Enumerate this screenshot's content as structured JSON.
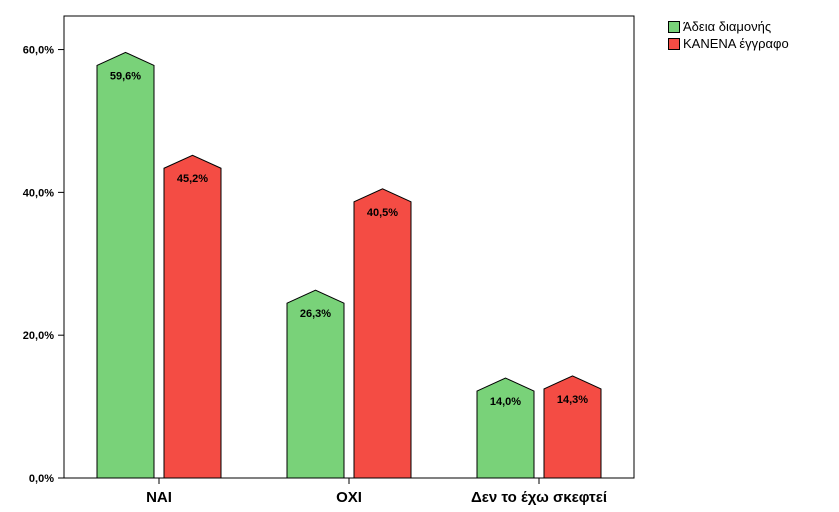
{
  "chart_data": {
    "type": "bar",
    "categories": [
      "ΝΑΙ",
      "ΟΧΙ",
      "Δεν το έχω σκεφτεί"
    ],
    "series": [
      {
        "name": "Άδεια διαμονής",
        "values": [
          59.6,
          26.3,
          14.0
        ],
        "labels": [
          "59,6%",
          "26,3%",
          "14,0%"
        ],
        "color": "#79d279"
      },
      {
        "name": "ΚΑΝΕΝΑ έγγραφο",
        "values": [
          45.2,
          40.5,
          14.3
        ],
        "labels": [
          "45,2%",
          "40,5%",
          "14,3%"
        ],
        "color": "#f44c44"
      }
    ],
    "yticks": [
      "0,0%",
      "20,0%",
      "40,0%",
      "60,0%"
    ],
    "ytick_values": [
      0,
      20,
      40,
      60
    ],
    "ylim": [
      0,
      64.7
    ],
    "grid": false,
    "legend_position": "top-right outside",
    "bar_shape": "pointed-top",
    "title": "",
    "xlabel": "",
    "ylabel": ""
  }
}
